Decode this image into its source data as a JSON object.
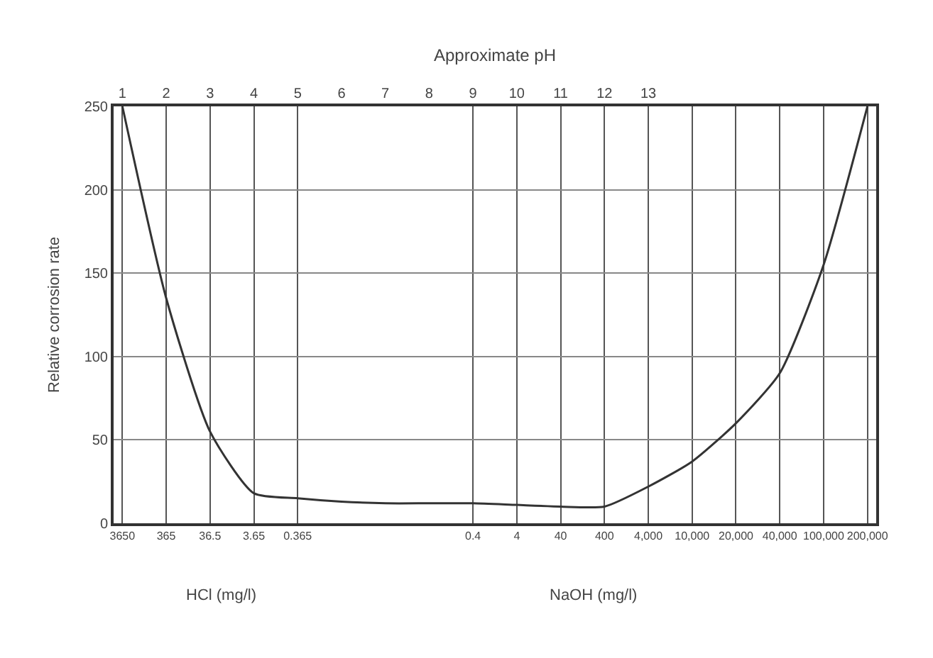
{
  "chart_data": {
    "type": "line",
    "x2label": "Approximate pH",
    "ylabel": "Relative corrosion rate",
    "categories": [
      "3650",
      "365",
      "36.5",
      "3.65",
      "0.365",
      null,
      null,
      null,
      "0.4",
      "4",
      "40",
      "400",
      "4,000",
      "10,000",
      "20,000",
      "40,000",
      "100,000",
      "200,000"
    ],
    "series": [
      {
        "color": "#333333",
        "values": [
          250,
          135,
          55,
          18,
          15,
          13,
          12,
          12,
          12,
          11,
          10,
          10,
          22,
          37,
          60,
          90,
          155,
          250
        ]
      }
    ],
    "x2lim": [
      1,
      18
    ],
    "x2ticks": [
      1,
      2,
      3,
      4,
      5,
      6,
      7,
      8,
      9,
      10,
      11,
      12,
      13
    ],
    "ylim": [
      0,
      250
    ],
    "yticks": [
      0,
      50,
      100,
      150,
      200,
      250
    ],
    "grid": true,
    "marker": "none",
    "line_style": "solid",
    "annotations": [
      "HCl (mg/l)",
      "NaOH (mg/l)"
    ]
  }
}
